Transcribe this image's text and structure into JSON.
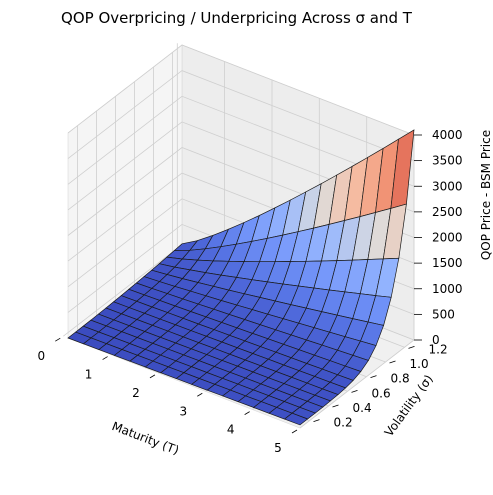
{
  "chart_data": {
    "type": "surface",
    "title": "QOP Overpricing / Underpricing Across σ and T",
    "xlabel": "Maturity (T)",
    "ylabel": "Volatility (σ)",
    "zlabel": "QOP Price - BSM Price",
    "colormap": "coolwarm",
    "x_ticks": [
      "0",
      "1",
      "2",
      "3",
      "4",
      "5"
    ],
    "y_ticks": [
      "0.2",
      "0.4",
      "0.6",
      "0.8",
      "1.0",
      "1.2"
    ],
    "z_ticks": [
      "0",
      "500",
      "1000",
      "1500",
      "2000",
      "2500",
      "3000",
      "3500",
      "4000"
    ],
    "x_range": [
      0.1,
      5
    ],
    "y_range": [
      0.1,
      1.3
    ],
    "z_range": [
      0,
      4000
    ],
    "grid": true,
    "corner_values": {
      "low_T_low_sigma": 0,
      "high_T_low_sigma": 100,
      "low_T_high_sigma": 200,
      "high_T_high_sigma": 4100
    }
  }
}
